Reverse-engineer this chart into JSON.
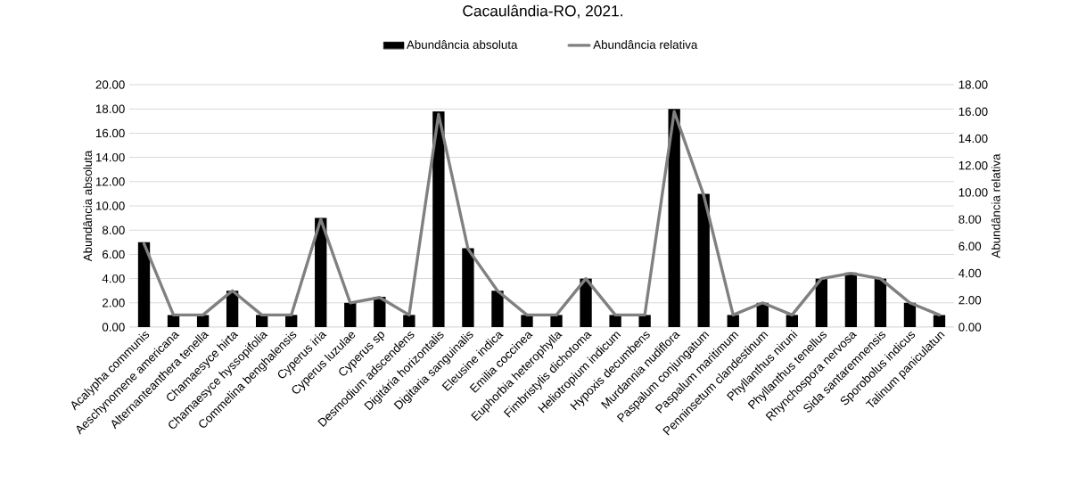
{
  "chart_data": {
    "type": "bar",
    "title": "Cacaulândia-RO, 2021.",
    "ylabel": "Abundância absoluta",
    "y2label": "Abundância relativa",
    "categories": [
      "Acalypha communis",
      "Aeschynomene americana",
      "Alternanteanthera tenella",
      "Chamaesyce hirta",
      "Chamaesyce hyssopifolia",
      "Commelina benghalensis",
      "Cyperus iria",
      "Cyperus luzulae",
      "Cyperus sp",
      "Desmodium adscendens",
      "Digitária horizontalis",
      "Digitaria sanguinalis",
      "Eleusine indica",
      "Emilia coccinea",
      "Euphorbia heterophylla",
      "Fimbristylis dichotoma",
      "Heliotropium indicum",
      "Hypoxis decumbens",
      "Murdannia nudiflora",
      "Paspalum conjungatum",
      "Paspalum maritimum",
      "Penninsetum clandestinum",
      "Phyllanthus niruni",
      "Phyllanthus tenellus",
      "Rhynchospora nervosa",
      "Sida santaremnensis",
      "Sporobolus indicus",
      "Talinum paniculatun"
    ],
    "series": [
      {
        "name": "Abundância absoluta",
        "type": "bar",
        "color": "#000000",
        "values": [
          7,
          1,
          1,
          3,
          1,
          1,
          9,
          2,
          2.5,
          1,
          17.8,
          6.5,
          3,
          1,
          1,
          4,
          1,
          1,
          18,
          11,
          1,
          2,
          1,
          4,
          4.5,
          4,
          2,
          1
        ]
      },
      {
        "name": "Abundância relativa",
        "type": "line",
        "axis": "y2",
        "color": "#808080",
        "values": [
          6.2,
          0.9,
          0.9,
          2.7,
          0.9,
          0.9,
          8.0,
          1.8,
          2.2,
          0.9,
          15.8,
          5.8,
          2.7,
          0.9,
          0.9,
          3.6,
          0.9,
          0.9,
          16.0,
          9.8,
          0.9,
          1.8,
          0.9,
          3.6,
          4.0,
          3.6,
          1.8,
          0.9
        ]
      }
    ],
    "ylim": [
      0,
      20
    ],
    "yticks": [
      {
        "value": 0,
        "label": "0.00"
      },
      {
        "value": 2,
        "label": "2.00"
      },
      {
        "value": 4,
        "label": "4.00"
      },
      {
        "value": 6,
        "label": "6.00"
      },
      {
        "value": 8,
        "label": "8.00"
      },
      {
        "value": 10,
        "label": "10.00"
      },
      {
        "value": 12,
        "label": "12.00"
      },
      {
        "value": 14,
        "label": "14.00"
      },
      {
        "value": 16,
        "label": "16.00"
      },
      {
        "value": 18,
        "label": "18.00"
      },
      {
        "value": 20,
        "label": "20.00"
      }
    ],
    "y2lim": [
      0,
      18
    ],
    "y2ticks": [
      {
        "value": 0,
        "label": "0.00"
      },
      {
        "value": 2,
        "label": "2.00"
      },
      {
        "value": 4,
        "label": "4.00"
      },
      {
        "value": 6,
        "label": "6.00"
      },
      {
        "value": 8,
        "label": "8.00"
      },
      {
        "value": 10,
        "label": "10.00"
      },
      {
        "value": 12,
        "label": "12.00"
      },
      {
        "value": 14,
        "label": "14.00"
      },
      {
        "value": 16,
        "label": "16.00"
      },
      {
        "value": 18,
        "label": "18.00"
      }
    ],
    "grid": "y",
    "legend": "top"
  }
}
